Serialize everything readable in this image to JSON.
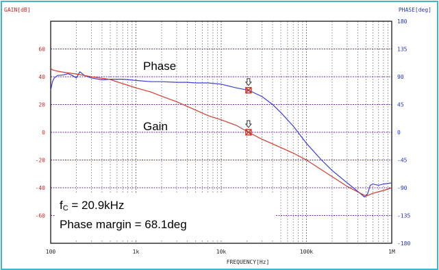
{
  "chart_data": {
    "type": "line",
    "title": "",
    "xlabel": "FREQUENCY[Hz]",
    "ylabel_left": "GAIN[dB]",
    "ylabel_right": "PHASE[deg]",
    "x_scale": "log",
    "xlim": [
      100,
      1000000
    ],
    "ylim_left": [
      -80,
      80
    ],
    "ylim_right": [
      -180,
      180
    ],
    "x_ticks": [
      {
        "value": 100,
        "label": "100"
      },
      {
        "value": 1000,
        "label": "1k"
      },
      {
        "value": 10000,
        "label": "10k"
      },
      {
        "value": 100000,
        "label": "100k"
      },
      {
        "value": 1000000,
        "label": "1M"
      }
    ],
    "y_ticks_left": [
      "60",
      "40",
      "20",
      "0",
      "-20",
      "-40",
      "-60"
    ],
    "y_ticks_right": [
      "180",
      "135",
      "90",
      "45",
      "0",
      "-45",
      "-90",
      "-135",
      "-180"
    ],
    "grid": true,
    "series": [
      {
        "name": "Phase",
        "axis": "right",
        "color": "#3b3bdc",
        "points": [
          [
            100,
            68
          ],
          [
            105,
            82
          ],
          [
            110,
            88
          ],
          [
            120,
            92
          ],
          [
            140,
            93
          ],
          [
            160,
            95
          ],
          [
            180,
            92
          ],
          [
            200,
            88
          ],
          [
            220,
            98
          ],
          [
            250,
            92
          ],
          [
            300,
            88
          ],
          [
            400,
            85
          ],
          [
            500,
            86
          ],
          [
            700,
            86
          ],
          [
            1000,
            84
          ],
          [
            1500,
            82
          ],
          [
            2000,
            82
          ],
          [
            3000,
            81
          ],
          [
            4000,
            81
          ],
          [
            5000,
            80
          ],
          [
            7000,
            80
          ],
          [
            10000,
            78
          ],
          [
            15000,
            72
          ],
          [
            20900,
            68.1
          ],
          [
            30000,
            58
          ],
          [
            40000,
            45
          ],
          [
            50000,
            32
          ],
          [
            70000,
            10
          ],
          [
            100000,
            -18
          ],
          [
            150000,
            -45
          ],
          [
            200000,
            -62
          ],
          [
            300000,
            -82
          ],
          [
            400000,
            -96
          ],
          [
            480000,
            -105
          ],
          [
            520000,
            -100
          ],
          [
            560000,
            -86
          ],
          [
            600000,
            -84
          ],
          [
            700000,
            -86
          ],
          [
            800000,
            -84
          ],
          [
            1000000,
            -82
          ]
        ]
      },
      {
        "name": "Gain",
        "axis": "left",
        "color": "#d23a2a",
        "points": [
          [
            100,
            46
          ],
          [
            105,
            45
          ],
          [
            120,
            44
          ],
          [
            150,
            43
          ],
          [
            200,
            42
          ],
          [
            300,
            40
          ],
          [
            500,
            38
          ],
          [
            700,
            35
          ],
          [
            1000,
            32
          ],
          [
            1500,
            29
          ],
          [
            2000,
            26
          ],
          [
            3000,
            22
          ],
          [
            5000,
            16
          ],
          [
            7000,
            12
          ],
          [
            10000,
            9
          ],
          [
            15000,
            5
          ],
          [
            20900,
            0
          ],
          [
            30000,
            -5
          ],
          [
            50000,
            -11
          ],
          [
            70000,
            -15
          ],
          [
            100000,
            -20
          ],
          [
            150000,
            -27
          ],
          [
            200000,
            -32
          ],
          [
            300000,
            -39
          ],
          [
            400000,
            -43
          ],
          [
            500000,
            -46
          ],
          [
            600000,
            -44
          ],
          [
            800000,
            -42
          ],
          [
            1000000,
            -40
          ]
        ]
      }
    ],
    "annotations": {
      "phase_label": "Phase",
      "gain_label": "Gain",
      "fc_label": "f",
      "fc_subscript": "C",
      "fc_value": " = 20.9kHz",
      "phase_margin": "Phase margin = 68.1deg"
    },
    "markers": {
      "crossover_frequency": 20900,
      "gain_at_crossover": 0,
      "phase_at_crossover": 68.1
    },
    "colors": {
      "frame": "#3db8c8",
      "axis_text_left": "#cc2222",
      "axis_text_right": "#2233bb",
      "major_grid": "#6b2a9e",
      "minor_grid": "#888888",
      "marker": "#d23a2a"
    }
  }
}
